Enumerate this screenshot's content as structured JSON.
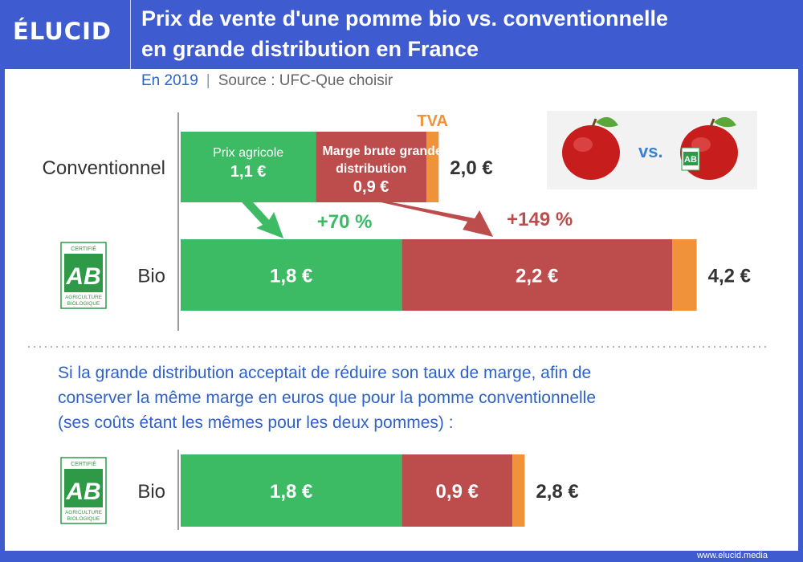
{
  "header": {
    "logo": "ÉLUCID",
    "title_line1": "Prix de vente d'une pomme bio vs. conventionnelle",
    "title_line2": "en grande distribution en France"
  },
  "subtitle": {
    "year": "En 2019",
    "separator": "|",
    "source": "Source : UFC-Que choisir"
  },
  "colors": {
    "header": "#3f5bd0",
    "prix_agricole": "#3dbb64",
    "marge": "#bd4c4c",
    "tva": "#f0923a",
    "growth_green": "#3dbb64",
    "growth_red": "#bd4c4c",
    "text_blue": "#2e62c9"
  },
  "icons": {
    "ab_logo": "ab-label-icon",
    "apple": "apple-icon"
  },
  "ab_label": {
    "top": "CERTIFIÉ",
    "letters": "AB",
    "bottom1": "AGRICULTURE",
    "bottom2": "BIOLOGIQUE"
  },
  "image_vs": "vs.",
  "explanation": [
    "Si la grande distribution acceptait de réduire son taux de marge, afin de",
    "conserver la même marge en euros que pour la pomme conventionnelle",
    "(ses coûts étant les mêmes pour les deux pommes) :"
  ],
  "footer": {
    "url": "www.elucid.media"
  },
  "chart_data": {
    "type": "bar",
    "orientation": "horizontal",
    "stacked": true,
    "unit": "€",
    "components": [
      "Prix agricole",
      "Marge brute grande distribution",
      "TVA"
    ],
    "tva_label": "TVA",
    "bars": [
      {
        "category": "Conventionnel",
        "prix_agricole": 1.1,
        "marge": 0.9,
        "tva": 0.1,
        "labels": {
          "prix_agricole": [
            "Prix agricole",
            "1,1 €"
          ],
          "marge": [
            "Marge brute grande",
            "distribution",
            "0,9 €"
          ]
        },
        "total_label": "2,0 €"
      },
      {
        "category": "Bio",
        "prix_agricole": 1.8,
        "marge": 2.2,
        "tva": 0.2,
        "labels": {
          "prix_agricole": [
            "1,8 €"
          ],
          "marge": [
            "2,2 €"
          ]
        },
        "total_label": "4,2 €"
      },
      {
        "category": "Bio",
        "prix_agricole": 1.8,
        "marge": 0.9,
        "tva": 0.1,
        "labels": {
          "prix_agricole": [
            "1,8 €"
          ],
          "marge": [
            "0,9 €"
          ]
        },
        "total_label": "2,8 €"
      }
    ],
    "growth": {
      "prix_agricole": "+70 %",
      "marge": "+149 %"
    }
  }
}
